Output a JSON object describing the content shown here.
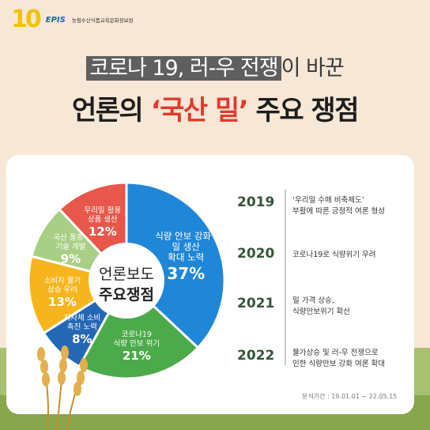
{
  "header": {
    "logo_number": "10",
    "logo_brand": "EPIS",
    "logo_org": "농림수산식품교육문화정보원"
  },
  "title": {
    "line1_highlight": "코로나 19, 러-우 전쟁",
    "line1_rest": "이 바꾼",
    "line2_pre": "언론의 ",
    "line2_red": "‘국산 밀’",
    "line2_post": " 주요 쟁점"
  },
  "chart_data": {
    "type": "pie",
    "center_label": [
      "언론보도",
      "주요쟁점"
    ],
    "slices": [
      {
        "label": [
          "식량 안보 강화 ·",
          "밀 생산",
          "확대 노력"
        ],
        "value": 37,
        "value_label": "37%",
        "color": "#1f86d8"
      },
      {
        "label": [
          "코로나19",
          "식량 안보 위기"
        ],
        "value": 21,
        "value_label": "21%",
        "color": "#4caa4a"
      },
      {
        "label": [
          "지자체 소비",
          "촉진 노력"
        ],
        "value": 8,
        "value_label": "8%",
        "color": "#2467b5"
      },
      {
        "label": [
          "소비자 물가",
          "상승 우려"
        ],
        "value": 13,
        "value_label": "13%",
        "color": "#f7b51d"
      },
      {
        "label": [
          "국산 품종 ·",
          "기술 개발"
        ],
        "value": 9,
        "value_label": "9%",
        "color": "#a8cf85"
      },
      {
        "label": [
          "우리밀 활용",
          "상품 생산"
        ],
        "value": 12,
        "value_label": "12%",
        "color": "#e8574b"
      }
    ]
  },
  "timeline": [
    {
      "year": "2019",
      "text": [
        "‘우리밀 수매 비축제도’",
        "부활에 따른 긍정적 여론 형성"
      ]
    },
    {
      "year": "2020",
      "text": [
        "코로나19로 식량위기 우려"
      ]
    },
    {
      "year": "2021",
      "text": [
        "밀 가격 상승,",
        "식량안보위기 확산"
      ]
    },
    {
      "year": "2022",
      "text": [
        "물가상승 및 러-우 전쟁으로",
        "인한 식량안보 강화 여론 확대"
      ]
    }
  ],
  "period": "분석기간 : 19.01.01 ~ 22.05.15"
}
